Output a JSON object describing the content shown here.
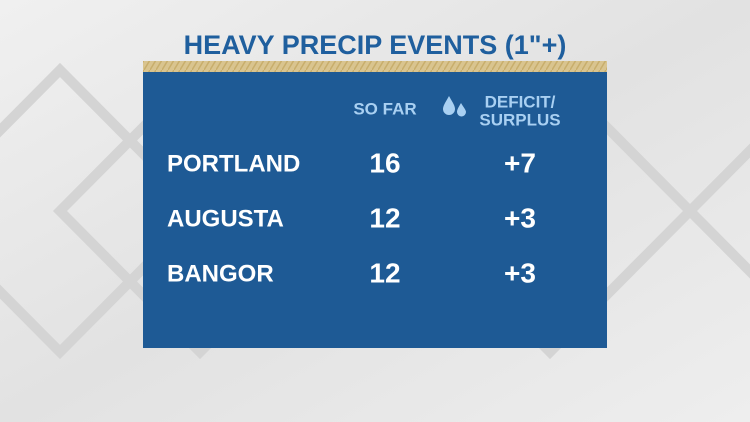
{
  "header": {
    "title": "HEAVY PRECIP EVENTS (1\"+)"
  },
  "table": {
    "columns": [
      {
        "lines": [
          "SO FAR"
        ]
      },
      {
        "lines": [
          "DEFICIT/",
          "SURPLUS"
        ]
      }
    ],
    "rows": [
      [
        "PORTLAND",
        16,
        "+7"
      ],
      [
        "AUGUSTA",
        12,
        "+3"
      ],
      [
        "BANGOR",
        12,
        "+3"
      ]
    ]
  }
}
